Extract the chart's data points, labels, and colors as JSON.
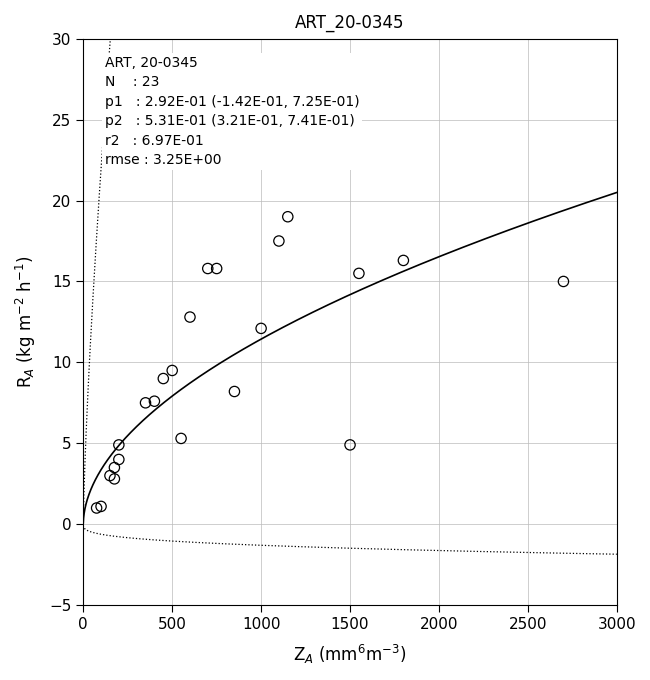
{
  "title": "ART_20-0345",
  "xlabel": "Z$_A$ (mm$^6$m$^{-3}$)",
  "ylabel": "R$_A$ (kg m$^{-2}$ h$^{-1}$)",
  "xlim": [
    0,
    3000
  ],
  "ylim": [
    -5,
    30
  ],
  "xticks": [
    0,
    500,
    1000,
    1500,
    2000,
    2500,
    3000
  ],
  "yticks": [
    -5,
    0,
    5,
    10,
    15,
    20,
    25,
    30
  ],
  "annotation_lines": [
    "ART, 20-0345",
    "N    : 23",
    "p1   : 2.92E-01 (-1.42E-01, 7.25E-01)",
    "p2   : 5.31E-01 (3.21E-01, 7.41E-01)",
    "r2   : 6.97E-01",
    "rmse : 3.25E+00"
  ],
  "p1": 0.292,
  "p2": 0.531,
  "p1_lo": -0.142,
  "p1_hi": 0.725,
  "p2_lo": 0.321,
  "p2_hi": 0.741,
  "scatter_x": [
    75,
    100,
    150,
    175,
    175,
    200,
    200,
    350,
    400,
    450,
    500,
    550,
    600,
    700,
    750,
    850,
    1000,
    1100,
    1150,
    1500,
    1550,
    1800,
    2700
  ],
  "scatter_y": [
    1.0,
    1.1,
    3.0,
    2.8,
    3.5,
    4.0,
    4.9,
    7.5,
    7.6,
    9.0,
    9.5,
    5.3,
    12.8,
    15.8,
    15.8,
    8.2,
    12.1,
    17.5,
    19.0,
    4.9,
    15.5,
    16.3,
    15.0
  ],
  "fit_color": "#000000",
  "ci_color": "#000000",
  "scatter_facecolor": "none",
  "scatter_edge_color": "#000000",
  "scatter_size": 55,
  "grid_color": "#bbbbbb",
  "background_color": "#ffffff",
  "figsize": [
    6.5,
    6.8
  ],
  "dpi": 100
}
